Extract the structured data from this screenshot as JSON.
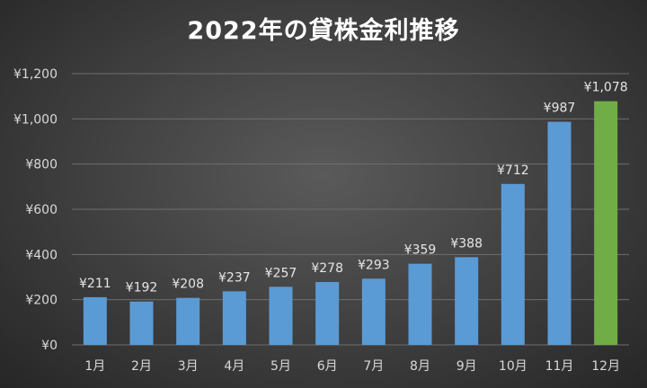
{
  "chart_data": {
    "type": "bar",
    "title": "2022年の貸株金利推移",
    "xlabel": "",
    "ylabel": "",
    "categories": [
      "1月",
      "2月",
      "3月",
      "4月",
      "5月",
      "6月",
      "7月",
      "8月",
      "9月",
      "10月",
      "11月",
      "12月"
    ],
    "values": [
      211,
      192,
      208,
      237,
      257,
      278,
      293,
      359,
      388,
      712,
      987,
      1078
    ],
    "data_labels": [
      "¥211",
      "¥192",
      "¥208",
      "¥237",
      "¥257",
      "¥278",
      "¥293",
      "¥359",
      "¥388",
      "¥712",
      "¥987",
      "¥1,078"
    ],
    "ylim": [
      0,
      1200
    ],
    "yticks": [
      0,
      200,
      400,
      600,
      800,
      1000,
      1200
    ],
    "ytick_labels": [
      "¥0",
      "¥200",
      "¥400",
      "¥600",
      "¥800",
      "¥1,000",
      "¥1,200"
    ],
    "grid": true,
    "legend": "none",
    "colors": {
      "bar": "#5b9bd5",
      "highlight_bar": "#70ad47",
      "highlight_index": 11,
      "gridline": "#6e6e6e",
      "text": "#d9d9d9"
    }
  }
}
